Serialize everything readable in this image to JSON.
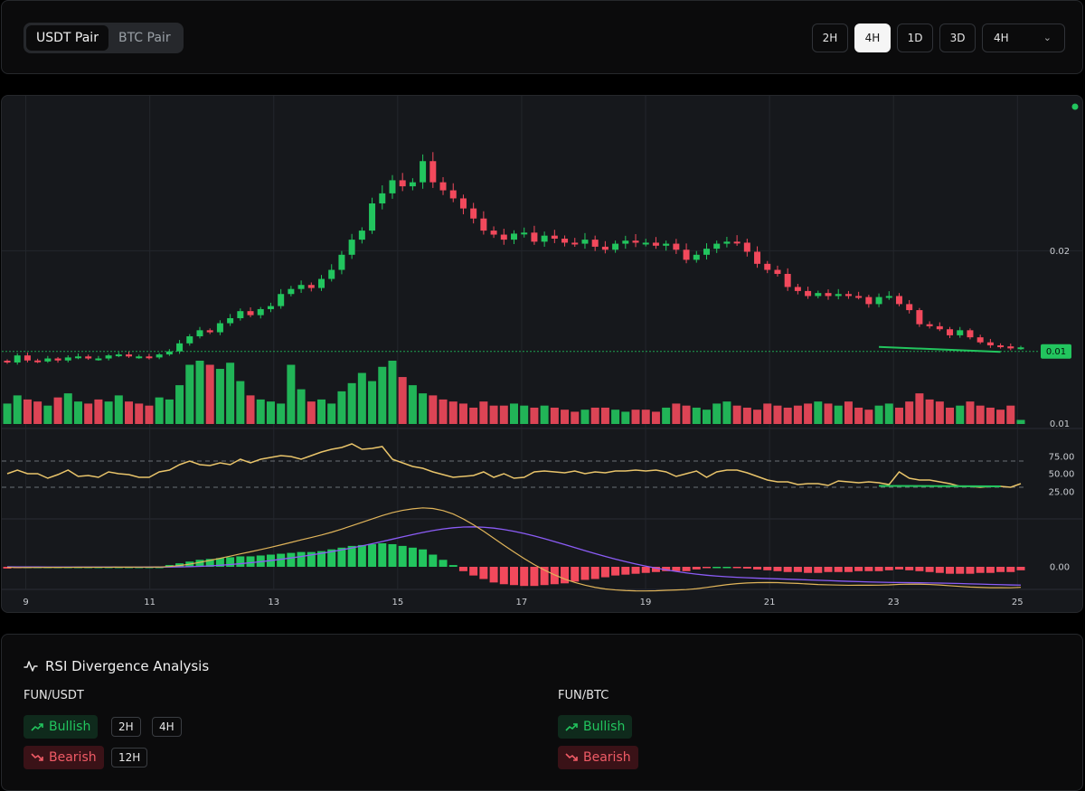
{
  "toolbar": {
    "pair_tabs": [
      "USDT Pair",
      "BTC Pair"
    ],
    "active_pair": "USDT Pair",
    "timeframes": [
      "2H",
      "4H",
      "1D",
      "3D"
    ],
    "active_timeframe": "4H",
    "interval_select": "4H"
  },
  "chart": {
    "price_labels": {
      "upper": "0.02",
      "current": "0.01",
      "lower": "0.01"
    },
    "current_price_color": "#22c55e",
    "rsi_labels": [
      "75.00",
      "50.00",
      "25.00"
    ],
    "macd_label": "0.00",
    "x_labels": [
      "9",
      "11",
      "13",
      "15",
      "17",
      "19",
      "21",
      "23",
      "25"
    ],
    "colors": {
      "up": "#22c55e",
      "down": "#f2495c",
      "rsi": "#e9c46a",
      "macd": "#e0b45a",
      "signal": "#8b5cf6",
      "live_dot": "#22c55e"
    }
  },
  "chart_data": [
    {
      "type": "candlestick",
      "x_domain": [
        8.7,
        25.2
      ],
      "x_ticks": [
        9,
        11,
        13,
        15,
        17,
        19,
        21,
        23,
        25
      ],
      "candles_close": [
        0.0089,
        0.0096,
        0.0091,
        0.009,
        0.0093,
        0.0091,
        0.0094,
        0.0095,
        0.0093,
        0.0093,
        0.0096,
        0.0097,
        0.0095,
        0.0095,
        0.0094,
        0.0097,
        0.01,
        0.0108,
        0.0115,
        0.0121,
        0.0119,
        0.0128,
        0.0133,
        0.014,
        0.0136,
        0.0142,
        0.0145,
        0.0157,
        0.0162,
        0.0166,
        0.0163,
        0.0172,
        0.0181,
        0.0196,
        0.0211,
        0.022,
        0.0247,
        0.0257,
        0.027,
        0.0264,
        0.0268,
        0.0289,
        0.0268,
        0.026,
        0.0252,
        0.0242,
        0.0232,
        0.022,
        0.0216,
        0.0211,
        0.0217,
        0.0218,
        0.0209,
        0.0215,
        0.0212,
        0.0208,
        0.0207,
        0.0211,
        0.0204,
        0.0201,
        0.0207,
        0.021,
        0.0208,
        0.0208,
        0.0205,
        0.0207,
        0.0201,
        0.0191,
        0.0196,
        0.0202,
        0.0207,
        0.0209,
        0.0208,
        0.0199,
        0.0187,
        0.0181,
        0.0177,
        0.0164,
        0.016,
        0.0155,
        0.0158,
        0.0155,
        0.0157,
        0.0155,
        0.0154,
        0.0147,
        0.0154,
        0.0155,
        0.0147,
        0.0141,
        0.0127,
        0.0125,
        0.0122,
        0.0116,
        0.0121,
        0.0114,
        0.0109,
        0.0106,
        0.0105,
        0.0103,
        0.0104
      ],
      "price_ticks": [
        "0.02",
        "0.01",
        "0.01"
      ],
      "current_price": 0.01
    },
    {
      "type": "bar",
      "name": "volume",
      "values": [
        20,
        28,
        24,
        22,
        18,
        26,
        30,
        22,
        20,
        24,
        22,
        28,
        22,
        20,
        18,
        26,
        24,
        38,
        58,
        62,
        58,
        54,
        60,
        42,
        28,
        24,
        22,
        20,
        58,
        34,
        22,
        24,
        20,
        32,
        40,
        50,
        42,
        56,
        62,
        46,
        38,
        30,
        28,
        24,
        22,
        20,
        16,
        22,
        18,
        18,
        20,
        18,
        16,
        18,
        16,
        14,
        12,
        14,
        16,
        16,
        14,
        12,
        14,
        14,
        12,
        16,
        20,
        18,
        16,
        14,
        20,
        22,
        18,
        16,
        14,
        20,
        18,
        16,
        18,
        20,
        22,
        20,
        18,
        22,
        16,
        14,
        18,
        20,
        16,
        22,
        30,
        24,
        22,
        16,
        18,
        22,
        18,
        16,
        14,
        18,
        4
      ],
      "candle_up": [
        true,
        true,
        false,
        false,
        true,
        false,
        true,
        true,
        false,
        false,
        true,
        true,
        false,
        false,
        false,
        true,
        true,
        true,
        true,
        true,
        false,
        true,
        true,
        true,
        false,
        true,
        true,
        true,
        true,
        true,
        false,
        true,
        true,
        true,
        true,
        true,
        true,
        true,
        true,
        false,
        true,
        true,
        false,
        false,
        false,
        false,
        false,
        false,
        false,
        false,
        true,
        true,
        false,
        true,
        false,
        false,
        false,
        true,
        false,
        false,
        true,
        true,
        false,
        false,
        false,
        true,
        false,
        false,
        true,
        true,
        true,
        true,
        false,
        false,
        false,
        false,
        false,
        false,
        false,
        false,
        true,
        false,
        true,
        false,
        false,
        false,
        true,
        true,
        false,
        false,
        false,
        false,
        false,
        false,
        true,
        false,
        false,
        false,
        false,
        false,
        true
      ]
    },
    {
      "type": "line",
      "name": "RSI",
      "ylim": [
        0,
        100
      ],
      "reference_lines": [
        70,
        30
      ],
      "values": [
        45,
        60,
        50,
        50,
        51,
        55,
        60,
        53,
        54,
        52,
        58,
        56,
        55,
        52,
        52,
        58,
        60,
        66,
        70,
        66,
        65,
        68,
        66,
        72,
        68,
        72,
        74,
        76,
        75,
        72,
        76,
        80,
        83,
        85,
        89,
        83,
        84,
        86,
        72,
        68,
        64,
        62,
        58,
        55,
        52,
        53,
        54,
        58,
        52,
        50,
        51,
        52,
        47,
        48,
        47,
        46,
        48,
        50,
        47,
        46,
        48,
        48,
        49,
        48,
        49,
        47,
        42,
        45,
        48,
        52,
        47,
        49,
        49,
        46,
        42,
        38,
        36,
        36,
        33,
        34,
        34,
        32,
        37,
        36,
        35,
        36,
        35,
        33,
        47,
        40,
        38,
        38,
        36,
        34,
        31,
        31,
        30,
        31,
        31,
        30,
        34
      ]
    },
    {
      "type": "bar",
      "name": "MACD",
      "zero_label": "0.00",
      "histogram": [
        -2e-05,
        -1e-05,
        0,
        0,
        0,
        0,
        0,
        0,
        0,
        0,
        0,
        0,
        0,
        0,
        0,
        0,
        2e-05,
        4e-05,
        6e-05,
        8e-05,
        9e-05,
        0.0001,
        0.00011,
        0.00012,
        0.00012,
        0.00013,
        0.00014,
        0.00015,
        0.00016,
        0.00017,
        0.00017,
        0.00018,
        0.0002,
        0.00022,
        0.00024,
        0.00025,
        0.00026,
        0.00027,
        0.00026,
        0.00024,
        0.00022,
        0.0002,
        0.00014,
        8e-05,
        2e-05,
        -5e-05,
        -0.0001,
        -0.00014,
        -0.00018,
        -0.0002,
        -0.00021,
        -0.00022,
        -0.00022,
        -0.00021,
        -0.0002,
        -0.00019,
        -0.00017,
        -0.00015,
        -0.00014,
        -0.00012,
        -0.0001,
        -9e-05,
        -8e-05,
        -7e-05,
        -6e-05,
        -5e-05,
        -5e-05,
        -5e-05,
        -3e-05,
        -1e-05,
        0,
        0,
        -1e-05,
        -2e-05,
        -3e-05,
        -4e-05,
        -5e-05,
        -6e-05,
        -6e-05,
        -7e-05,
        -7e-05,
        -6e-05,
        -6e-05,
        -6e-05,
        -5e-05,
        -5e-05,
        -5e-05,
        -4e-05,
        -3e-05,
        -4e-05,
        -5e-05,
        -6e-05,
        -7e-05,
        -8e-05,
        -8e-05,
        -8e-05,
        -7e-05,
        -7e-05,
        -6e-05,
        -6e-05,
        -4e-05
      ]
    }
  ],
  "analysis": {
    "title": "RSI Divergence Analysis",
    "pairs": [
      {
        "name": "FUN/USDT",
        "bullish": "Bullish",
        "bearish": "Bearish",
        "bullish_tf": [
          "2H",
          "4H"
        ],
        "bearish_tf": [
          "12H"
        ]
      },
      {
        "name": "FUN/BTC",
        "bullish": "Bullish",
        "bearish": "Bearish",
        "bullish_tf": [],
        "bearish_tf": []
      }
    ]
  }
}
